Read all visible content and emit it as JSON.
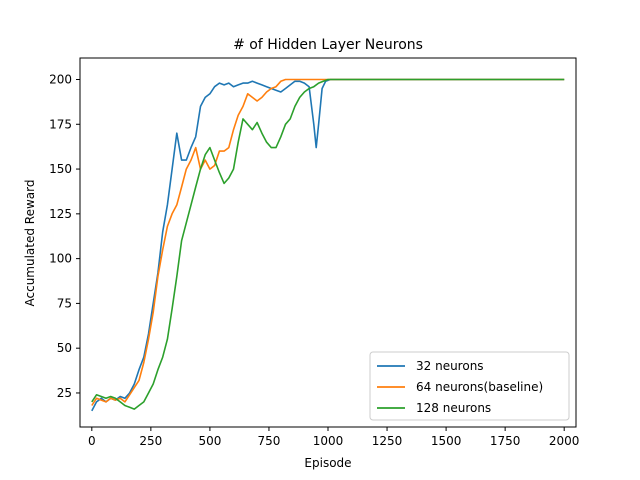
{
  "chart_data": {
    "type": "line",
    "title": "# of Hidden Layer Neurons",
    "xlabel": "Episode",
    "ylabel": "Accumulated Reward",
    "xlim": [
      -50,
      2050
    ],
    "ylim": [
      6,
      212
    ],
    "xticks": [
      0,
      250,
      500,
      750,
      1000,
      1250,
      1500,
      1750,
      2000
    ],
    "yticks": [
      25,
      50,
      75,
      100,
      125,
      150,
      175,
      200
    ],
    "grid": false,
    "legend_position": "lower-right",
    "series": [
      {
        "name": "32 neurons",
        "color": "#1f77b4",
        "points": [
          [
            0,
            15
          ],
          [
            20,
            20
          ],
          [
            40,
            22
          ],
          [
            60,
            20
          ],
          [
            80,
            22
          ],
          [
            100,
            21
          ],
          [
            120,
            23
          ],
          [
            140,
            22
          ],
          [
            160,
            25
          ],
          [
            180,
            30
          ],
          [
            200,
            38
          ],
          [
            220,
            45
          ],
          [
            240,
            58
          ],
          [
            260,
            75
          ],
          [
            280,
            92
          ],
          [
            300,
            115
          ],
          [
            320,
            130
          ],
          [
            340,
            150
          ],
          [
            360,
            170
          ],
          [
            380,
            155
          ],
          [
            400,
            155
          ],
          [
            420,
            162
          ],
          [
            440,
            168
          ],
          [
            460,
            185
          ],
          [
            480,
            190
          ],
          [
            500,
            192
          ],
          [
            520,
            196
          ],
          [
            540,
            198
          ],
          [
            560,
            197
          ],
          [
            580,
            198
          ],
          [
            600,
            196
          ],
          [
            620,
            197
          ],
          [
            640,
            198
          ],
          [
            660,
            198
          ],
          [
            680,
            199
          ],
          [
            700,
            198
          ],
          [
            720,
            197
          ],
          [
            740,
            196
          ],
          [
            760,
            195
          ],
          [
            780,
            194
          ],
          [
            800,
            193
          ],
          [
            820,
            195
          ],
          [
            840,
            197
          ],
          [
            860,
            199
          ],
          [
            880,
            199
          ],
          [
            900,
            198
          ],
          [
            920,
            196
          ],
          [
            940,
            175
          ],
          [
            950,
            162
          ],
          [
            960,
            175
          ],
          [
            975,
            195
          ],
          [
            990,
            199
          ],
          [
            1010,
            200
          ],
          [
            1050,
            200
          ],
          [
            1200,
            200
          ],
          [
            1500,
            200
          ],
          [
            1800,
            200
          ],
          [
            2000,
            200
          ]
        ]
      },
      {
        "name": "64 neurons(baseline)",
        "color": "#ff7f0e",
        "points": [
          [
            0,
            18
          ],
          [
            20,
            22
          ],
          [
            40,
            21
          ],
          [
            60,
            20
          ],
          [
            80,
            22
          ],
          [
            100,
            21
          ],
          [
            120,
            22
          ],
          [
            140,
            20
          ],
          [
            160,
            24
          ],
          [
            180,
            28
          ],
          [
            200,
            32
          ],
          [
            220,
            42
          ],
          [
            240,
            55
          ],
          [
            260,
            70
          ],
          [
            280,
            90
          ],
          [
            300,
            105
          ],
          [
            320,
            118
          ],
          [
            340,
            125
          ],
          [
            360,
            130
          ],
          [
            380,
            140
          ],
          [
            400,
            150
          ],
          [
            420,
            155
          ],
          [
            440,
            162
          ],
          [
            460,
            150
          ],
          [
            480,
            155
          ],
          [
            500,
            150
          ],
          [
            520,
            152
          ],
          [
            540,
            160
          ],
          [
            560,
            160
          ],
          [
            580,
            162
          ],
          [
            600,
            172
          ],
          [
            620,
            180
          ],
          [
            640,
            185
          ],
          [
            660,
            192
          ],
          [
            680,
            190
          ],
          [
            700,
            188
          ],
          [
            720,
            190
          ],
          [
            740,
            193
          ],
          [
            760,
            195
          ],
          [
            780,
            196
          ],
          [
            800,
            199
          ],
          [
            820,
            200
          ],
          [
            840,
            200
          ],
          [
            860,
            200
          ],
          [
            900,
            200
          ],
          [
            1000,
            200
          ],
          [
            1200,
            200
          ],
          [
            1500,
            200
          ],
          [
            1800,
            200
          ],
          [
            2000,
            200
          ]
        ]
      },
      {
        "name": "128 neurons",
        "color": "#2ca02c",
        "points": [
          [
            0,
            20
          ],
          [
            20,
            24
          ],
          [
            40,
            23
          ],
          [
            60,
            22
          ],
          [
            80,
            23
          ],
          [
            100,
            22
          ],
          [
            120,
            20
          ],
          [
            140,
            18
          ],
          [
            160,
            17
          ],
          [
            180,
            16
          ],
          [
            200,
            18
          ],
          [
            220,
            20
          ],
          [
            240,
            25
          ],
          [
            260,
            30
          ],
          [
            280,
            38
          ],
          [
            300,
            45
          ],
          [
            320,
            55
          ],
          [
            340,
            72
          ],
          [
            360,
            90
          ],
          [
            380,
            110
          ],
          [
            400,
            120
          ],
          [
            420,
            130
          ],
          [
            440,
            140
          ],
          [
            460,
            150
          ],
          [
            480,
            158
          ],
          [
            500,
            162
          ],
          [
            520,
            155
          ],
          [
            540,
            148
          ],
          [
            560,
            142
          ],
          [
            580,
            145
          ],
          [
            600,
            150
          ],
          [
            620,
            165
          ],
          [
            640,
            178
          ],
          [
            660,
            175
          ],
          [
            680,
            172
          ],
          [
            700,
            176
          ],
          [
            720,
            170
          ],
          [
            740,
            165
          ],
          [
            760,
            162
          ],
          [
            780,
            162
          ],
          [
            800,
            168
          ],
          [
            820,
            175
          ],
          [
            840,
            178
          ],
          [
            860,
            185
          ],
          [
            880,
            190
          ],
          [
            900,
            193
          ],
          [
            920,
            195
          ],
          [
            940,
            196
          ],
          [
            960,
            198
          ],
          [
            980,
            199
          ],
          [
            1000,
            200
          ],
          [
            1050,
            200
          ],
          [
            1200,
            200
          ],
          [
            1500,
            200
          ],
          [
            1800,
            200
          ],
          [
            2000,
            200
          ]
        ]
      }
    ]
  }
}
